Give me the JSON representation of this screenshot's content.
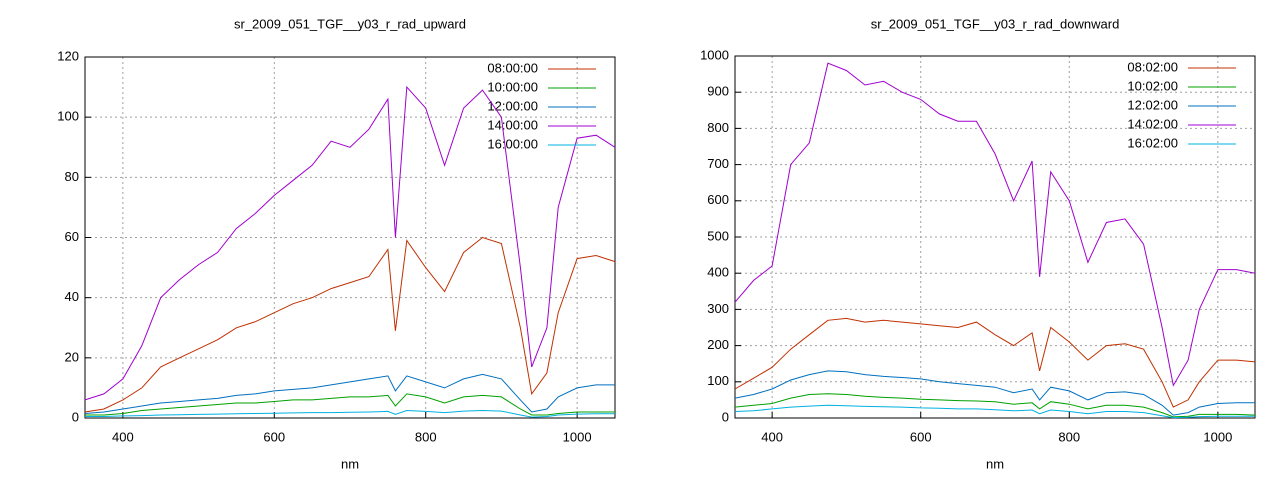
{
  "chart_data": [
    {
      "type": "line",
      "title": "sr_2009_051_TGF__y03_r_rad_upward",
      "x_label": "nm",
      "x": [
        350,
        375,
        400,
        425,
        450,
        475,
        500,
        525,
        550,
        575,
        600,
        625,
        650,
        675,
        700,
        725,
        750,
        760,
        775,
        800,
        825,
        850,
        875,
        900,
        925,
        940,
        960,
        975,
        1000,
        1025,
        1050
      ],
      "xlim": [
        350,
        1050
      ],
      "xticks": [
        400,
        600,
        800,
        1000
      ],
      "ylim": [
        0,
        120
      ],
      "yticks": [
        0,
        20,
        40,
        60,
        80,
        100,
        120
      ],
      "grid": true,
      "legend": "top-right",
      "series": [
        {
          "name": "08:00:00",
          "color": "#c03000",
          "values": [
            2,
            3,
            6,
            10,
            17,
            20,
            23,
            26,
            30,
            32,
            35,
            38,
            40,
            43,
            45,
            47,
            56,
            29,
            59,
            50,
            42,
            55,
            60,
            58,
            30,
            8,
            15,
            35,
            53,
            54,
            52
          ]
        },
        {
          "name": "10:00:00",
          "color": "#00a000",
          "values": [
            1,
            1,
            1.5,
            2.5,
            3,
            3.5,
            4,
            4.5,
            5,
            5,
            5.5,
            6,
            6,
            6.5,
            7,
            7,
            7.5,
            4,
            8,
            7,
            5,
            7,
            7.5,
            7,
            3,
            1,
            1,
            1.5,
            2,
            2,
            2
          ]
        },
        {
          "name": "12:00:00",
          "color": "#0070c0",
          "values": [
            1.5,
            2,
            3,
            4,
            5,
            5.5,
            6,
            6.5,
            7.5,
            8,
            9,
            9.5,
            10,
            11,
            12,
            13,
            14,
            9,
            14,
            12,
            10,
            13,
            14.5,
            13,
            6,
            2,
            3,
            7,
            10,
            11,
            11
          ]
        },
        {
          "name": "14:00:00",
          "color": "#a000d0",
          "values": [
            6,
            8,
            13,
            24,
            40,
            46,
            51,
            55,
            63,
            68,
            74,
            79,
            84,
            92,
            90,
            96,
            106,
            60,
            110,
            103,
            84,
            103,
            109,
            100,
            50,
            17,
            30,
            70,
            93,
            94,
            90
          ]
        },
        {
          "name": "16:00:00",
          "color": "#00b0e0",
          "values": [
            0.5,
            0.5,
            0.7,
            0.8,
            1,
            1.1,
            1.2,
            1.3,
            1.4,
            1.5,
            1.6,
            1.7,
            1.8,
            1.8,
            1.9,
            2,
            2.2,
            1.2,
            2.5,
            2.2,
            1.8,
            2.3,
            2.5,
            2.3,
            1,
            0.3,
            0.5,
            1,
            1.3,
            1.4,
            1.4
          ]
        }
      ]
    },
    {
      "type": "line",
      "title": "sr_2009_051_TGF__y03_r_rad_downward",
      "x_label": "nm",
      "x": [
        350,
        375,
        400,
        425,
        450,
        475,
        500,
        525,
        550,
        575,
        600,
        625,
        650,
        675,
        700,
        725,
        750,
        760,
        775,
        800,
        825,
        850,
        875,
        900,
        925,
        940,
        960,
        975,
        1000,
        1025,
        1050
      ],
      "xlim": [
        350,
        1050
      ],
      "xticks": [
        400,
        600,
        800,
        1000
      ],
      "ylim": [
        0,
        1000
      ],
      "yticks": [
        0,
        100,
        200,
        300,
        400,
        500,
        600,
        700,
        800,
        900,
        1000
      ],
      "grid": true,
      "legend": "top-right",
      "series": [
        {
          "name": "08:02:00",
          "color": "#c03000",
          "values": [
            80,
            110,
            140,
            190,
            230,
            270,
            275,
            265,
            270,
            265,
            260,
            255,
            250,
            265,
            230,
            200,
            235,
            130,
            250,
            210,
            160,
            200,
            205,
            190,
            100,
            30,
            50,
            100,
            160,
            160,
            155
          ]
        },
        {
          "name": "10:02:00",
          "color": "#00a000",
          "values": [
            30,
            35,
            40,
            55,
            65,
            67,
            65,
            60,
            57,
            55,
            52,
            50,
            48,
            47,
            45,
            38,
            42,
            25,
            45,
            38,
            25,
            35,
            35,
            30,
            15,
            3,
            5,
            10,
            10,
            10,
            8
          ]
        },
        {
          "name": "12:02:00",
          "color": "#0070c0",
          "values": [
            55,
            65,
            80,
            105,
            120,
            130,
            128,
            120,
            115,
            112,
            108,
            100,
            95,
            90,
            85,
            70,
            80,
            50,
            85,
            75,
            50,
            70,
            72,
            65,
            35,
            8,
            15,
            30,
            40,
            42,
            42
          ]
        },
        {
          "name": "14:02:00",
          "color": "#a000d0",
          "values": [
            320,
            380,
            420,
            700,
            760,
            980,
            960,
            920,
            930,
            900,
            880,
            840,
            820,
            820,
            730,
            600,
            710,
            390,
            680,
            600,
            430,
            540,
            550,
            480,
            250,
            90,
            160,
            300,
            410,
            410,
            400
          ]
        },
        {
          "name": "16:02:00",
          "color": "#00b0e0",
          "values": [
            18,
            20,
            25,
            30,
            33,
            35,
            34,
            32,
            31,
            30,
            28,
            27,
            25,
            25,
            23,
            20,
            22,
            12,
            22,
            18,
            12,
            18,
            18,
            15,
            6,
            1,
            2,
            4,
            5,
            5,
            5
          ]
        }
      ]
    }
  ]
}
